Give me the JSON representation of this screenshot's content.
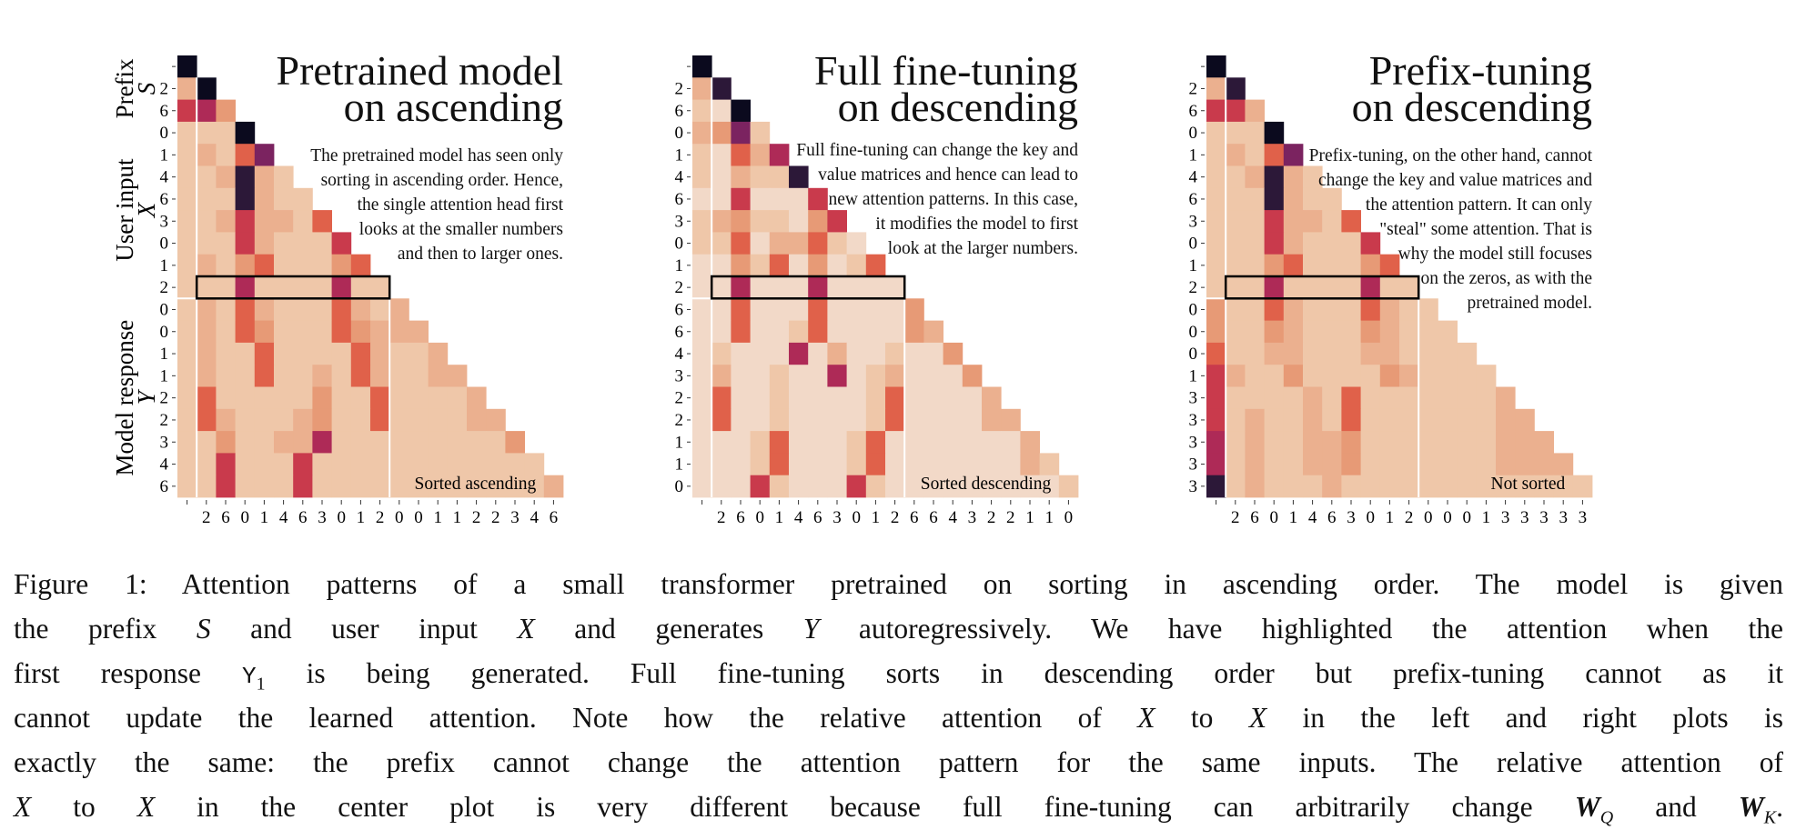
{
  "colors": {
    "levels": [
      "#f2d9c8",
      "#efc7a9",
      "#ebb08f",
      "#e79a76",
      "#e0614a",
      "#c93a4c",
      "#ae2a57",
      "#7b2360",
      "#2c1838",
      "#0b0a1e"
    ],
    "grid_separator": "#ffffff",
    "highlight_box": "#000000"
  },
  "group_labels": [
    {
      "label": "Prefix",
      "symbol": "S"
    },
    {
      "label": "User input",
      "symbol": "X"
    },
    {
      "label": "Model response",
      "symbol": "Y"
    }
  ],
  "chart_data": [
    {
      "type": "heatmap",
      "title": [
        "Pretrained model",
        "on ascending"
      ],
      "description": [
        "The pretrained model has seen only",
        "sorting in ascending order. Hence,",
        "the single attention head first",
        "looks at the smaller numbers",
        "and then to larger ones."
      ],
      "annotation": "Sorted ascending",
      "row_labels": [
        "",
        "2",
        "6",
        "0",
        "1",
        "4",
        "6",
        "3",
        "0",
        "1",
        "2",
        "0",
        "0",
        "1",
        "1",
        "2",
        "2",
        "3",
        "4",
        "6"
      ],
      "col_labels": [
        "",
        "2",
        "6",
        "0",
        "1",
        "4",
        "6",
        "3",
        "0",
        "1",
        "2",
        "0",
        "0",
        "1",
        "1",
        "2",
        "2",
        "3",
        "4",
        "6"
      ],
      "highlighted_row": 10,
      "levels": [
        "9",
        "29",
        "563",
        "1119",
        "12147",
        "112821",
        "1118211",
        "11252214",
        "111521115",
        "1213411134",
        "11161111611",
        "121421114212",
        "1214311143222",
        "12114111142112",
        "121141121421122",
        "1411111311411112",
        "14211123114111122",
        "113112261111111113",
        "1151115111111111111",
        "11511151111111111112"
      ]
    },
    {
      "type": "heatmap",
      "title": [
        "Full fine-tuning",
        "on descending"
      ],
      "description": [
        "Full fine-tuning can change the key and",
        "value matrices and hence can lead to",
        "new attention patterns. In this case,",
        "it modifies the model to first",
        "look at the larger numbers."
      ],
      "annotation": "Sorted descending",
      "row_labels": [
        "",
        "2",
        "6",
        "0",
        "1",
        "4",
        "6",
        "3",
        "0",
        "1",
        "2",
        "6",
        "6",
        "4",
        "3",
        "2",
        "2",
        "1",
        "1",
        "0"
      ],
      "col_labels": [
        "",
        "2",
        "6",
        "0",
        "1",
        "4",
        "6",
        "3",
        "0",
        "1",
        "2",
        "6",
        "6",
        "4",
        "3",
        "2",
        "2",
        "1",
        "1",
        "0"
      ],
      "highlighted_row": 10,
      "levels": [
        "9",
        "28",
        "109",
        "2371",
        "10426",
        "102118",
        "0050005",
        "12311035",
        "114022410",
        "0031403014",
        "00600060000",
        "004000400003",
        "0040014000032",
        "01000602001003",
        "020010060120003",
        "0400100001400002",
        "04001000014000022",
        "000140001400000002",
        "0001400014000000021",
        "00051000510000000001"
      ]
    },
    {
      "type": "heatmap",
      "title": [
        "Prefix-tuning",
        "on descending"
      ],
      "description": [
        "Prefix-tuning, on the other hand, cannot",
        "change the key and value matrices and",
        "the attention pattern. It can only",
        "\"steal\" some attention. That is",
        "why the model still focuses",
        "on the zeros, as with the",
        "pretrained model."
      ],
      "annotation": "Not sorted",
      "row_labels": [
        "",
        "2",
        "6",
        "0",
        "1",
        "4",
        "6",
        "3",
        "0",
        "1",
        "2",
        "0",
        "0",
        "0",
        "1",
        "3",
        "3",
        "3",
        "3",
        "3"
      ],
      "col_labels": [
        "",
        "2",
        "6",
        "0",
        "1",
        "4",
        "6",
        "3",
        "0",
        "1",
        "2",
        "0",
        "0",
        "0",
        "1",
        "3",
        "3",
        "3",
        "3",
        "3"
      ],
      "highlighted_row": 10,
      "levels": [
        "9",
        "28",
        "552",
        "1119",
        "12147",
        "112821",
        "1118211",
        "11152214",
        "111521115",
        "1113411134",
        "11161111611",
        "311421114211",
        "3113211132111",
        "41122111221111",
        "521131111321111",
        "5111121411111112",
        "51211214111111122",
        "612112231111111222",
        "6121122311111112222",
        "81211121111111111111"
      ]
    }
  ],
  "caption": {
    "lines": [
      [
        {
          "t": "Figure 1: Attention patterns of a small transformer pretrained on sorting in ascending order. The model is given"
        }
      ],
      [
        {
          "t": "the prefix "
        },
        {
          "t": "S",
          "s": "it"
        },
        {
          "t": " and user input "
        },
        {
          "t": "X",
          "s": "it"
        },
        {
          "t": " and generates "
        },
        {
          "t": "Y",
          "s": "it"
        },
        {
          "t": " autoregressively. We have highlighted the attention when the"
        }
      ],
      [
        {
          "t": "first response "
        },
        {
          "t": "Y",
          "s": "mono"
        },
        {
          "t": "1",
          "s": "sub"
        },
        {
          "t": " is being generated. Full fine-tuning sorts in descending order but prefix-tuning cannot as it"
        }
      ],
      [
        {
          "t": "cannot update the learned attention. Note how the relative attention of "
        },
        {
          "t": "X",
          "s": "it"
        },
        {
          "t": " to "
        },
        {
          "t": "X",
          "s": "it"
        },
        {
          "t": " in the left and right plots is"
        }
      ],
      [
        {
          "t": "exactly the same: the prefix cannot change the attention pattern for the same inputs. The relative attention of"
        }
      ],
      [
        {
          "t": "X",
          "s": "it"
        },
        {
          "t": " to "
        },
        {
          "t": "X",
          "s": "it"
        },
        {
          "t": " in the center plot is very different because full fine-tuning can arbitrarily change "
        },
        {
          "t": "W",
          "s": "bi"
        },
        {
          "t": "Q",
          "s": "subit"
        },
        {
          "t": " and "
        },
        {
          "t": "W",
          "s": "bi"
        },
        {
          "t": "K",
          "s": "subit"
        },
        {
          "t": "."
        }
      ]
    ]
  }
}
